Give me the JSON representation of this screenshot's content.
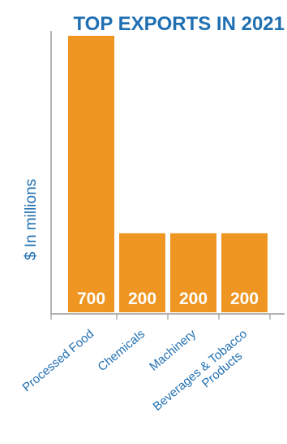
{
  "chart_data": {
    "type": "bar",
    "title": "TOP EXPORTS IN 2021",
    "ylabel": "$ In millions",
    "xlabel": "",
    "categories": [
      [
        "Processed Food"
      ],
      [
        "Chemicals"
      ],
      [
        "Machinery"
      ],
      [
        "Beverages & Tobacco",
        "Products"
      ]
    ],
    "values": [
      700,
      200,
      200,
      200
    ],
    "ylim": [
      0,
      700
    ],
    "grid": false,
    "data_labels": true
  },
  "colors": {
    "title": "#1f6fb2",
    "axis_text": "#1f6fb2",
    "bar": "#ee9621",
    "bar_label": "#ffffff",
    "axis": "#9a9a9a"
  }
}
